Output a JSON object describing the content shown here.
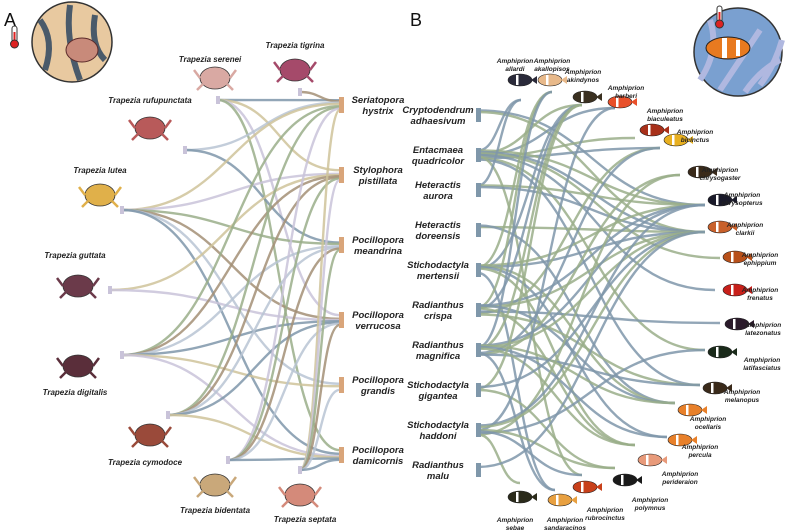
{
  "panels": [
    {
      "label": "A",
      "left_group": [
        {
          "name": "Trapezia serenei",
          "color": "#d9a9a3"
        },
        {
          "name": "Trapezia tigrina",
          "color": "#a54a6a"
        },
        {
          "name": "Trapezia rufupunctata",
          "color": "#b85a5a"
        },
        {
          "name": "Trapezia lutea",
          "color": "#e0b04a"
        },
        {
          "name": "Trapezia guttata",
          "color": "#6b3a4a"
        },
        {
          "name": "Trapezia digitalis",
          "color": "#5a2e3a"
        },
        {
          "name": "Trapezia cymodoce",
          "color": "#9a4a3a"
        },
        {
          "name": "Trapezia bidentata",
          "color": "#c9a87a"
        },
        {
          "name": "Trapezia septata",
          "color": "#d48a7a"
        }
      ],
      "right_group": [
        {
          "name1": "Seriatopora",
          "name2": "hystrix"
        },
        {
          "name1": "Stylophora",
          "name2": "pistillata"
        },
        {
          "name1": "Pocillopora",
          "name2": "meandrina"
        },
        {
          "name1": "Pocillopora",
          "name2": "verrucosa"
        },
        {
          "name1": "Pocillopora",
          "name2": "grandis"
        },
        {
          "name1": "Pocillopora",
          "name2": "damicornis"
        }
      ],
      "edges": [
        [
          0,
          0
        ],
        [
          0,
          1
        ],
        [
          0,
          3
        ],
        [
          0,
          5
        ],
        [
          1,
          0
        ],
        [
          2,
          0
        ],
        [
          2,
          2
        ],
        [
          3,
          0
        ],
        [
          3,
          1
        ],
        [
          3,
          2
        ],
        [
          3,
          3
        ],
        [
          3,
          4
        ],
        [
          3,
          5
        ],
        [
          4,
          1
        ],
        [
          4,
          3
        ],
        [
          5,
          0
        ],
        [
          5,
          1
        ],
        [
          5,
          2
        ],
        [
          5,
          3
        ],
        [
          5,
          4
        ],
        [
          5,
          5
        ],
        [
          6,
          0
        ],
        [
          6,
          1
        ],
        [
          6,
          2
        ],
        [
          6,
          3
        ],
        [
          6,
          5
        ],
        [
          7,
          0
        ],
        [
          7,
          1
        ],
        [
          7,
          2
        ],
        [
          7,
          3
        ],
        [
          7,
          5
        ],
        [
          8,
          0
        ],
        [
          8,
          1
        ],
        [
          8,
          2
        ],
        [
          8,
          3
        ],
        [
          8,
          4
        ],
        [
          8,
          5
        ]
      ]
    },
    {
      "label": "B",
      "left_group": [
        {
          "name1": "Cryptodendrum",
          "name2": "adhaesivum"
        },
        {
          "name1": "Entacmaea",
          "name2": "quadricolor"
        },
        {
          "name1": "Heteractis",
          "name2": "aurora"
        },
        {
          "name1": "Heteractis",
          "name2": "doreensis"
        },
        {
          "name1": "Stichodactyla",
          "name2": "mertensii"
        },
        {
          "name1": "Radianthus",
          "name2": "crispa"
        },
        {
          "name1": "Radianthus",
          "name2": "magnifica"
        },
        {
          "name1": "Stichodactyla",
          "name2": "gigantea"
        },
        {
          "name1": "Stichodactyla",
          "name2": "haddoni"
        },
        {
          "name1": "Radianthus",
          "name2": "malu"
        }
      ],
      "right_group": [
        {
          "name1": "Amphiprion",
          "name2": "allardi",
          "color": "#2a2a3a"
        },
        {
          "name1": "Amphiprion",
          "name2": "akallopisos",
          "color": "#e8b98a"
        },
        {
          "name1": "Amphiprion",
          "name2": "akindynos",
          "color": "#3a3020"
        },
        {
          "name1": "Amphiprion",
          "name2": "barberi",
          "color": "#e8502a"
        },
        {
          "name1": "Amphiprion",
          "name2": "biaculeatus",
          "color": "#a8301a"
        },
        {
          "name1": "Amphiprion",
          "name2": "bicinctus",
          "color": "#e8b020"
        },
        {
          "name1": "Amphiprion",
          "name2": "chrysogaster",
          "color": "#3a2a1a"
        },
        {
          "name1": "Amphiprion",
          "name2": "chrysopterus",
          "color": "#1a1a2a"
        },
        {
          "name1": "Amphiprion",
          "name2": "clarkii",
          "color": "#c8602a"
        },
        {
          "name1": "Amphiprion",
          "name2": "ephippium",
          "color": "#b8501a"
        },
        {
          "name1": "Amphiprion",
          "name2": "frenatus",
          "color": "#c8201a"
        },
        {
          "name1": "Amphiprion",
          "name2": "latezonatus",
          "color": "#2a1a2a"
        },
        {
          "name1": "Amphiprion",
          "name2": "latifasciatus",
          "color": "#1a2a1a"
        },
        {
          "name1": "Amphiprion",
          "name2": "melanopus",
          "color": "#3a2a1a"
        },
        {
          "name1": "Amphiprion",
          "name2": "ocellaris",
          "color": "#e8802a"
        },
        {
          "name1": "Amphiprion",
          "name2": "percula",
          "color": "#e8802a"
        },
        {
          "name1": "Amphiprion",
          "name2": "perideraion",
          "color": "#e89a7a"
        },
        {
          "name1": "Amphiprion",
          "name2": "polymnus",
          "color": "#1a1a1a"
        },
        {
          "name1": "Amphiprion",
          "name2": "rubrocinctus",
          "color": "#c8401a"
        },
        {
          "name1": "Amphiprion",
          "name2": "sandaracinos",
          "color": "#e8a040"
        },
        {
          "name1": "Amphiprion",
          "name2": "sebae",
          "color": "#2a2a1a"
        }
      ],
      "edges": [
        [
          0,
          7
        ],
        [
          0,
          8
        ],
        [
          1,
          0
        ],
        [
          1,
          2
        ],
        [
          1,
          3
        ],
        [
          1,
          4
        ],
        [
          1,
          5
        ],
        [
          1,
          7
        ],
        [
          1,
          8
        ],
        [
          1,
          9
        ],
        [
          1,
          10
        ],
        [
          1,
          12
        ],
        [
          1,
          13
        ],
        [
          1,
          18
        ],
        [
          2,
          0
        ],
        [
          2,
          7
        ],
        [
          2,
          8
        ],
        [
          3,
          8
        ],
        [
          3,
          14
        ],
        [
          4,
          1
        ],
        [
          4,
          2
        ],
        [
          4,
          7
        ],
        [
          4,
          8
        ],
        [
          4,
          14
        ],
        [
          4,
          15
        ],
        [
          4,
          16
        ],
        [
          4,
          19
        ],
        [
          5,
          1
        ],
        [
          5,
          2
        ],
        [
          5,
          5
        ],
        [
          5,
          7
        ],
        [
          5,
          8
        ],
        [
          5,
          11
        ],
        [
          5,
          13
        ],
        [
          5,
          14
        ],
        [
          5,
          16
        ],
        [
          6,
          1
        ],
        [
          6,
          2
        ],
        [
          6,
          5
        ],
        [
          6,
          6
        ],
        [
          6,
          7
        ],
        [
          6,
          8
        ],
        [
          6,
          13
        ],
        [
          6,
          14
        ],
        [
          6,
          15
        ],
        [
          6,
          16
        ],
        [
          6,
          19
        ],
        [
          7,
          2
        ],
        [
          7,
          8
        ],
        [
          7,
          17
        ],
        [
          8,
          3
        ],
        [
          8,
          6
        ],
        [
          8,
          7
        ],
        [
          8,
          8
        ],
        [
          8,
          12
        ],
        [
          8,
          17
        ],
        [
          8,
          18
        ],
        [
          8,
          20
        ],
        [
          9,
          8
        ]
      ]
    }
  ],
  "edge_colors": [
    "#7f97aa",
    "#cfc39a",
    "#c9c3d9",
    "#9aae8a",
    "#a38f75",
    "#b9c4d3"
  ],
  "icons": [
    "thermometer-icon"
  ]
}
